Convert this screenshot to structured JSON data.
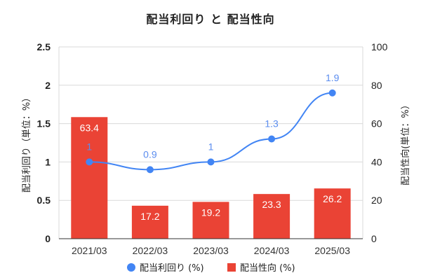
{
  "chart_data": {
    "type": "bar",
    "title": "配当利回り と 配当性向",
    "categories": [
      "2021/03",
      "2022/03",
      "2023/03",
      "2024/03",
      "2025/03"
    ],
    "series": [
      {
        "name": "配当性向 (%)",
        "type": "bar",
        "axis": "right",
        "color": "#ea4335",
        "values": [
          63.4,
          17.2,
          19.2,
          23.3,
          26.2
        ],
        "labels": [
          "63.4",
          "17.2",
          "19.2",
          "23.3",
          "26.2"
        ]
      },
      {
        "name": "配当利回り (%)",
        "type": "line",
        "axis": "left",
        "color": "#4285f4",
        "values": [
          1,
          0.9,
          1,
          1.3,
          1.9
        ],
        "labels": [
          "1",
          "0.9",
          "1",
          "1.3",
          "1.9"
        ]
      }
    ],
    "ylabel": "配当利回り（単位：%）",
    "y2label": "配当性向(単位：%）",
    "ylim": [
      0,
      2.5
    ],
    "y2lim": [
      0,
      100
    ],
    "yticks": [
      "0",
      "0.5",
      "1",
      "1.5",
      "2",
      "2.5"
    ],
    "y2ticks": [
      "0",
      "20",
      "40",
      "60",
      "80",
      "100"
    ],
    "legend_position": "bottom",
    "grid": true
  }
}
